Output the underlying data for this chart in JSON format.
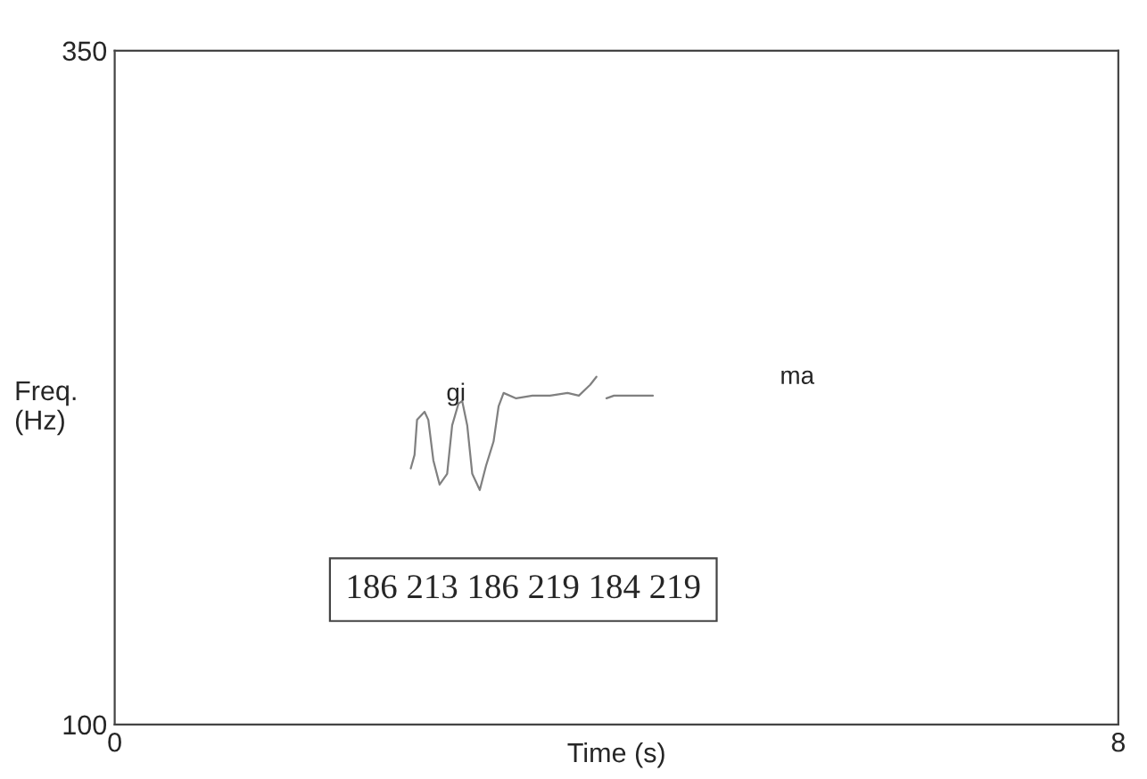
{
  "chart_data": {
    "type": "line",
    "xlabel": "Time (s)",
    "ylabel": "Freq.\n(Hz)",
    "xlim": [
      0,
      8
    ],
    "xticks": [
      0,
      8
    ],
    "ylim": [
      100,
      350
    ],
    "yticks": [
      100,
      350
    ],
    "grid": false,
    "legend": false,
    "marker": "none",
    "line_style": "solid",
    "series": [
      {
        "color": "#808080",
        "x": [
          2.36,
          2.39,
          2.41,
          2.47,
          2.5,
          2.54,
          2.59,
          2.65,
          2.69,
          2.74,
          2.77,
          2.81,
          2.85,
          2.91,
          2.96,
          3.02,
          3.06,
          3.1,
          3.2,
          3.33,
          3.47,
          3.61,
          3.7,
          3.79,
          3.84,
          3.87,
          3.92,
          3.98,
          4.12,
          4.29
        ],
        "values": [
          195,
          200,
          213,
          216,
          213,
          198,
          189,
          193,
          211,
          219,
          220,
          211,
          193,
          187,
          196,
          205,
          218,
          223,
          221,
          222,
          222,
          223,
          222,
          226,
          229,
          null,
          221,
          222,
          222,
          222
        ]
      }
    ],
    "annotations": [
      "gi",
      "ma",
      "186 213 186 219 184 219"
    ]
  }
}
